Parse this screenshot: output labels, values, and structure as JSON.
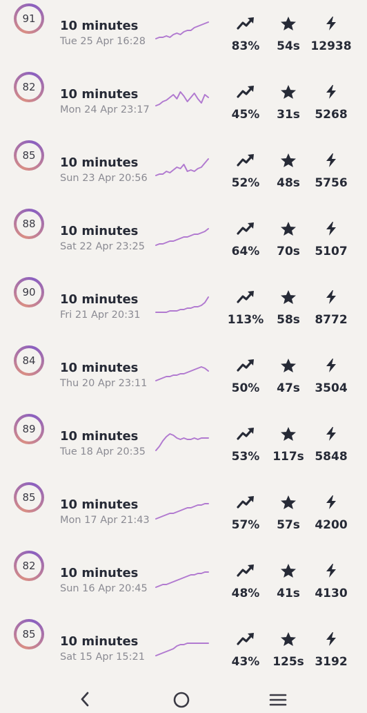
{
  "colors": {
    "ring_start": "#d98e84",
    "ring_end": "#8a5fc0",
    "sparkline": "#b17ad0",
    "icon": "#262a36"
  },
  "icons": {
    "trend": "trending-up-icon",
    "star": "star-icon",
    "bolt": "lightning-bolt-icon"
  },
  "sessions": [
    {
      "score": "91",
      "duration": "10 minutes",
      "date": "Tue 25 Apr 16:28",
      "percent": "83%",
      "time": "54s",
      "points": "12938",
      "trend": [
        3,
        4,
        4,
        5,
        4,
        6,
        7,
        6,
        8,
        9,
        9,
        11,
        12,
        13,
        14,
        15
      ]
    },
    {
      "score": "82",
      "duration": "10 minutes",
      "date": "Mon 24 Apr 23:17",
      "percent": "45%",
      "time": "31s",
      "points": "5268",
      "trend": [
        4,
        5,
        7,
        8,
        10,
        12,
        9,
        14,
        11,
        7,
        10,
        13,
        9,
        6,
        12,
        10
      ]
    },
    {
      "score": "85",
      "duration": "10 minutes",
      "date": "Sun 23 Apr 20:56",
      "percent": "52%",
      "time": "48s",
      "points": "5756",
      "trend": [
        3,
        4,
        4,
        6,
        5,
        7,
        9,
        8,
        11,
        6,
        7,
        6,
        8,
        9,
        12,
        15
      ]
    },
    {
      "score": "88",
      "duration": "10 minutes",
      "date": "Sat 22 Apr 23:25",
      "percent": "64%",
      "time": "70s",
      "points": "5107",
      "trend": [
        2,
        3,
        3,
        4,
        5,
        5,
        6,
        7,
        8,
        8,
        9,
        10,
        10,
        11,
        12,
        14
      ]
    },
    {
      "score": "90",
      "duration": "10 minutes",
      "date": "Fri 21 Apr 20:31",
      "percent": "113%",
      "time": "58s",
      "points": "8772",
      "trend": [
        3,
        3,
        3,
        3,
        4,
        4,
        4,
        5,
        5,
        6,
        6,
        7,
        7,
        8,
        10,
        14
      ]
    },
    {
      "score": "84",
      "duration": "10 minutes",
      "date": "Thu 20 Apr 23:11",
      "percent": "50%",
      "time": "47s",
      "points": "3504",
      "trend": [
        3,
        4,
        5,
        6,
        6,
        7,
        7,
        8,
        8,
        9,
        10,
        11,
        12,
        13,
        12,
        10
      ]
    },
    {
      "score": "89",
      "duration": "10 minutes",
      "date": "Tue 18 Apr 20:35",
      "percent": "53%",
      "time": "117s",
      "points": "5848",
      "trend": [
        2,
        5,
        9,
        12,
        14,
        13,
        11,
        10,
        11,
        10,
        10,
        11,
        10,
        11,
        11,
        11
      ]
    },
    {
      "score": "85",
      "duration": "10 minutes",
      "date": "Mon 17 Apr 21:43",
      "percent": "57%",
      "time": "57s",
      "points": "4200",
      "trend": [
        2,
        3,
        4,
        5,
        6,
        6,
        7,
        8,
        9,
        10,
        10,
        11,
        12,
        12,
        13,
        13
      ]
    },
    {
      "score": "82",
      "duration": "10 minutes",
      "date": "Sun 16 Apr 20:45",
      "percent": "48%",
      "time": "41s",
      "points": "4130",
      "trend": [
        2,
        3,
        4,
        4,
        5,
        6,
        7,
        8,
        9,
        10,
        11,
        11,
        12,
        12,
        13,
        13
      ]
    },
    {
      "score": "85",
      "duration": "10 minutes",
      "date": "Sat 15 Apr 15:21",
      "percent": "43%",
      "time": "125s",
      "points": "3192",
      "trend": [
        2,
        3,
        4,
        5,
        6,
        7,
        9,
        10,
        10,
        11,
        11,
        11,
        11,
        11,
        11,
        11
      ]
    }
  ],
  "navigation": {
    "back": "back-chevron-icon",
    "home": "home-circle-icon",
    "menu": "menu-lines-icon"
  }
}
